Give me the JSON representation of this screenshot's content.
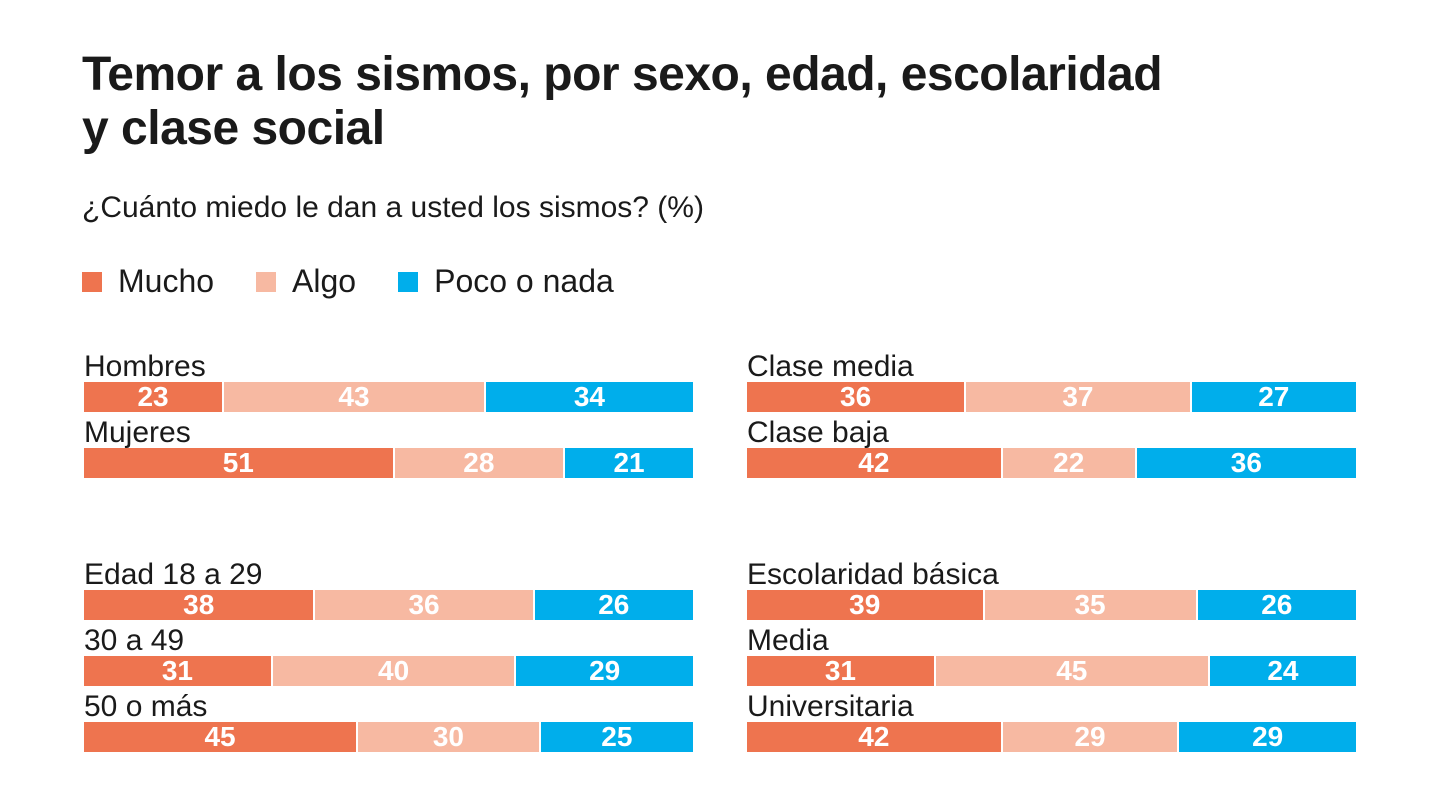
{
  "chart_data": {
    "type": "bar",
    "orientation": "horizontal-stacked-100",
    "title": "Temor a los sismos, por sexo, edad, escolaridad y clase social",
    "subtitle": "¿Cuánto miedo le dan a usted los sismos? (%)",
    "xlabel": "",
    "ylabel": "",
    "xlim": [
      0,
      100
    ],
    "legend_position": "top-left",
    "series": [
      {
        "name": "Mucho",
        "color": "#EE744F"
      },
      {
        "name": "Algo",
        "color": "#F7B9A2"
      },
      {
        "name": "Poco o nada",
        "color": "#00AEEB"
      }
    ],
    "panels": [
      {
        "group": "sexo",
        "rows": [
          {
            "label": "Hombres",
            "values": [
              23,
              43,
              34
            ]
          },
          {
            "label": "Mujeres",
            "values": [
              51,
              28,
              21
            ]
          }
        ]
      },
      {
        "group": "clase social",
        "rows": [
          {
            "label": "Clase media",
            "values": [
              36,
              37,
              27
            ]
          },
          {
            "label": "Clase baja",
            "values": [
              42,
              22,
              36
            ]
          }
        ]
      },
      {
        "group": "edad",
        "rows": [
          {
            "label": "Edad 18 a 29",
            "values": [
              38,
              36,
              26
            ]
          },
          {
            "label": "30 a 49",
            "values": [
              31,
              40,
              29
            ]
          },
          {
            "label": "50 o más",
            "values": [
              45,
              30,
              25
            ]
          }
        ]
      },
      {
        "group": "escolaridad",
        "rows": [
          {
            "label": "Escolaridad básica",
            "values": [
              39,
              35,
              26
            ]
          },
          {
            "label": "Media",
            "values": [
              31,
              45,
              24
            ]
          },
          {
            "label": "Universitaria",
            "values": [
              42,
              29,
              29
            ]
          }
        ]
      }
    ]
  },
  "header": {
    "title_line1": "Temor a los sismos, por sexo, edad, escolaridad",
    "title_line2": "y clase social",
    "subtitle": "¿Cuánto miedo le dan a usted los sismos? (%)"
  },
  "legend": [
    {
      "label": "Mucho",
      "color": "#EE744F"
    },
    {
      "label": "Algo",
      "color": "#F7B9A2"
    },
    {
      "label": "Poco o nada",
      "color": "#00AEEB"
    }
  ]
}
